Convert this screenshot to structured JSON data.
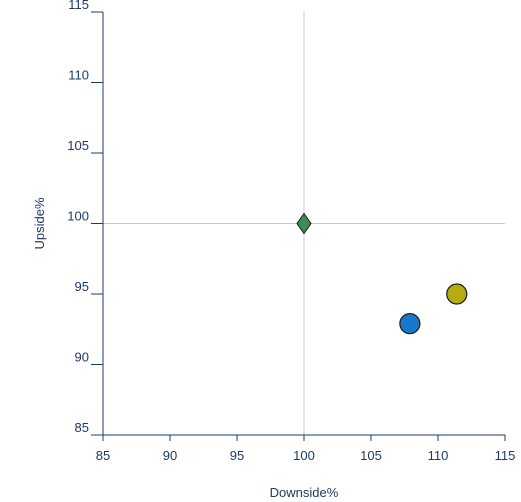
{
  "chart_data": {
    "type": "scatter",
    "title": "",
    "xlabel": "Downside%",
    "ylabel": "Upside%",
    "xlim": [
      85,
      115
    ],
    "ylim": [
      85,
      115
    ],
    "xticks": [
      85,
      90,
      95,
      100,
      105,
      110,
      115
    ],
    "yticks": [
      85,
      90,
      95,
      100,
      105,
      110,
      115
    ],
    "reference_lines": {
      "x": 100,
      "y": 100
    },
    "grid": false,
    "legend": "none",
    "points": [
      {
        "x": 100,
        "y": 100,
        "marker": "diamond",
        "color": "#3f8a5a"
      },
      {
        "x": 111.4,
        "y": 95.0,
        "marker": "circle",
        "color": "#b5ad10"
      },
      {
        "x": 107.9,
        "y": 92.9,
        "marker": "circle",
        "color": "#1a78c8"
      }
    ],
    "colors": {
      "axis": "#1f3864",
      "tick_text": "#1f3864",
      "reference_line": "#c8c8c8",
      "marker_stroke": "#1a1a1a"
    }
  }
}
